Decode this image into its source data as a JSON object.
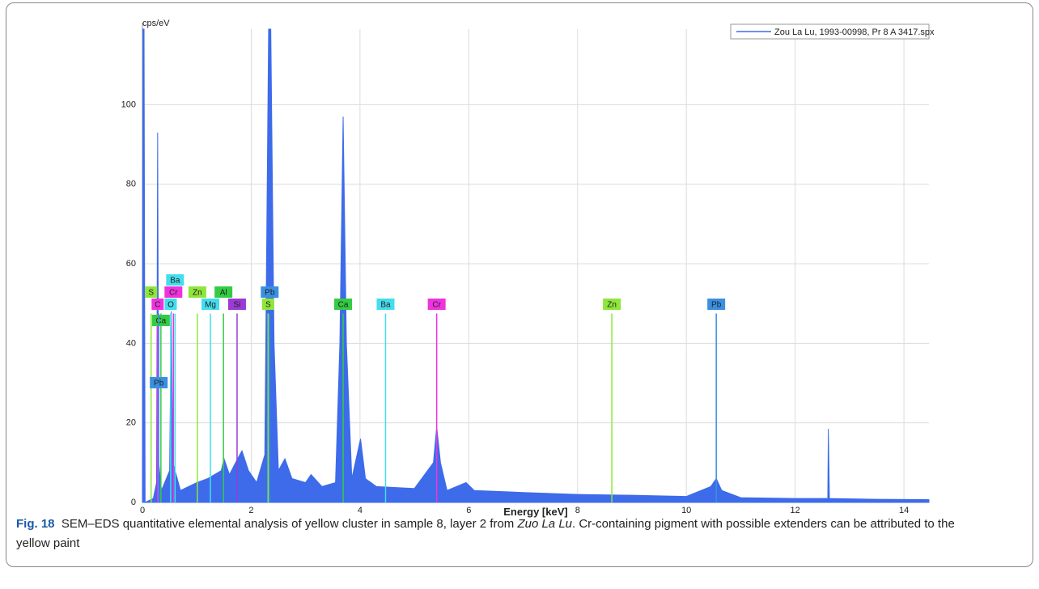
{
  "chart_data": {
    "type": "area",
    "y_label": "cps/eV",
    "x_label": "Energy [keV]",
    "xlim": [
      0,
      14.46
    ],
    "ylim": [
      0,
      119
    ],
    "xticks": [
      0,
      2,
      4,
      6,
      8,
      10,
      12,
      14
    ],
    "yticks": [
      0,
      20,
      40,
      60,
      80,
      100
    ],
    "grid": true,
    "legend": "upper right",
    "series": [
      {
        "name": "Zou La Lu, 1993-00998, Pr 8 A 3417.spx",
        "color": "#3d6bea",
        "x": [
          0,
          0.01,
          0.03,
          0.05,
          0.2,
          0.26,
          0.28,
          0.3,
          0.35,
          0.5,
          0.53,
          0.56,
          0.7,
          1.0,
          1.2,
          1.45,
          1.5,
          1.6,
          1.75,
          1.83,
          1.95,
          2.1,
          2.25,
          2.32,
          2.36,
          2.42,
          2.5,
          2.62,
          2.75,
          3.0,
          3.1,
          3.3,
          3.55,
          3.63,
          3.69,
          3.75,
          3.85,
          4.01,
          4.1,
          4.3,
          5.0,
          5.35,
          5.41,
          5.48,
          5.6,
          5.95,
          6.1,
          7,
          8,
          9,
          10,
          10.45,
          10.55,
          10.65,
          11,
          12,
          12.6,
          12.61,
          12.63,
          13.5,
          14.46
        ],
        "values": [
          0,
          119,
          119,
          0,
          1,
          5,
          93,
          10,
          3,
          8,
          48,
          10,
          3,
          5,
          6,
          8,
          11,
          7,
          11,
          13,
          8,
          5,
          12,
          119,
          119,
          40,
          8,
          11,
          6,
          5,
          7,
          4,
          5,
          40,
          97,
          40,
          6,
          16,
          6,
          4,
          3.5,
          10,
          19,
          10,
          3,
          5,
          3,
          2.5,
          2,
          1.8,
          1.5,
          4,
          6,
          3,
          1.2,
          1,
          1,
          18.5,
          1,
          0.8,
          0.7
        ]
      }
    ],
    "element_lines": [
      {
        "label": "S",
        "energy": 0.16,
        "height": 47.5,
        "color": "#8ee63a"
      },
      {
        "label": "C",
        "energy": 0.28,
        "height": 47.5,
        "color": "#ee33dd"
      },
      {
        "label": "Ca",
        "energy": 0.34,
        "height": 47.5,
        "color": "#33cc44"
      },
      {
        "label": "Pb",
        "energy": 0.3,
        "height": 47.5,
        "color": "#3b8fe0"
      },
      {
        "label": "Cr",
        "energy": 0.57,
        "height": 47.5,
        "color": "#ee33dd"
      },
      {
        "label": "O",
        "energy": 0.52,
        "height": 47.5,
        "color": "#44dded"
      },
      {
        "label": "Ba",
        "energy": 0.6,
        "height": 47.5,
        "color": "#44dded"
      },
      {
        "label": "Zn",
        "energy": 1.01,
        "height": 47.5,
        "color": "#8ee63a"
      },
      {
        "label": "Mg",
        "energy": 1.25,
        "height": 47.5,
        "color": "#44dded"
      },
      {
        "label": "Al",
        "energy": 1.49,
        "height": 47.5,
        "color": "#33cc44"
      },
      {
        "label": "Si",
        "energy": 1.74,
        "height": 47.5,
        "color": "#9b3bd6"
      },
      {
        "label": "Pb",
        "energy": 2.34,
        "height": 47.5,
        "color": "#3b8fe0"
      },
      {
        "label": "S",
        "energy": 2.31,
        "height": 47.5,
        "color": "#8ee63a"
      },
      {
        "label": "Ca",
        "energy": 3.69,
        "height": 47.5,
        "color": "#33cc44"
      },
      {
        "label": "Ba",
        "energy": 4.47,
        "height": 47.5,
        "color": "#44dded"
      },
      {
        "label": "Cr",
        "energy": 5.41,
        "height": 47.5,
        "color": "#ee33dd"
      },
      {
        "label": "Zn",
        "energy": 8.63,
        "height": 47.5,
        "color": "#8ee63a"
      },
      {
        "label": "Pb",
        "energy": 10.55,
        "height": 47.5,
        "color": "#3b8fe0"
      }
    ]
  },
  "caption": {
    "label": "Fig. 18",
    "text_1": "SEM–EDS quantitative elemental analysis of yellow cluster in sample 8, layer 2 from ",
    "italic": "Zuo La Lu",
    "text_2": ". Cr-containing pigment with possible extenders can be attributed to the yellow paint"
  }
}
